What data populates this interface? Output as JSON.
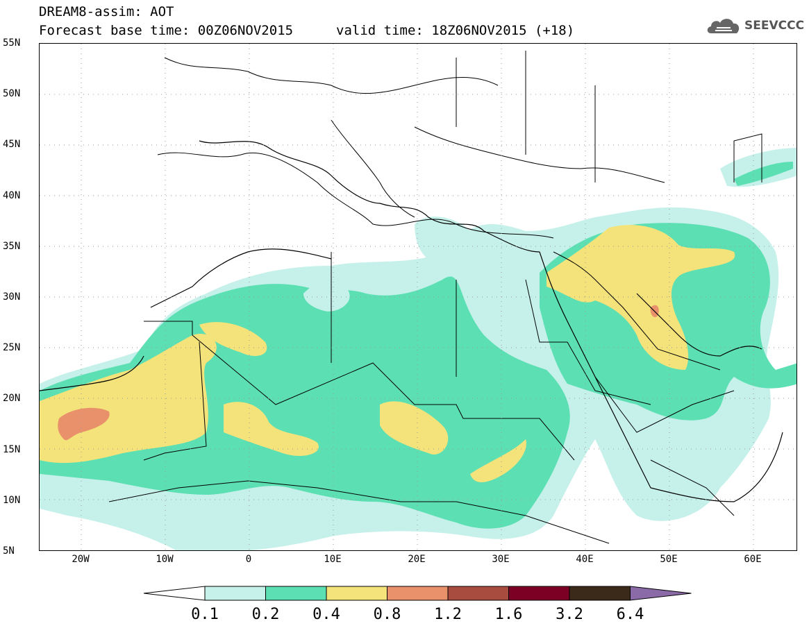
{
  "title": {
    "line1": "DREAM8-assim: AOT",
    "line2": "Forecast base time: 00Z06NOV2015",
    "valid": "valid time: 18Z06NOV2015 (+18)"
  },
  "logo": {
    "text": "SEEVCCC",
    "icon": "cloud-icon"
  },
  "map": {
    "lat_labels": [
      "55N",
      "50N",
      "45N",
      "40N",
      "35N",
      "30N",
      "25N",
      "20N",
      "15N",
      "10N",
      "5N"
    ],
    "lon_labels": [
      "20W",
      "10W",
      "0",
      "10E",
      "20E",
      "30E",
      "40E",
      "50E",
      "60E"
    ],
    "lon_range": [
      -25,
      65
    ],
    "lat_range": [
      5,
      55
    ]
  },
  "colorbar": {
    "labels": [
      "0.1",
      "0.2",
      "0.4",
      "0.8",
      "1.2",
      "1.6",
      "3.2",
      "6.4"
    ],
    "colors": [
      "#ffffff",
      "#c6f1ea",
      "#5ddfb4",
      "#f4e37a",
      "#e9916b",
      "#a84c3f",
      "#7b0024",
      "#3b2a1a",
      "#8b6aa8"
    ]
  }
}
